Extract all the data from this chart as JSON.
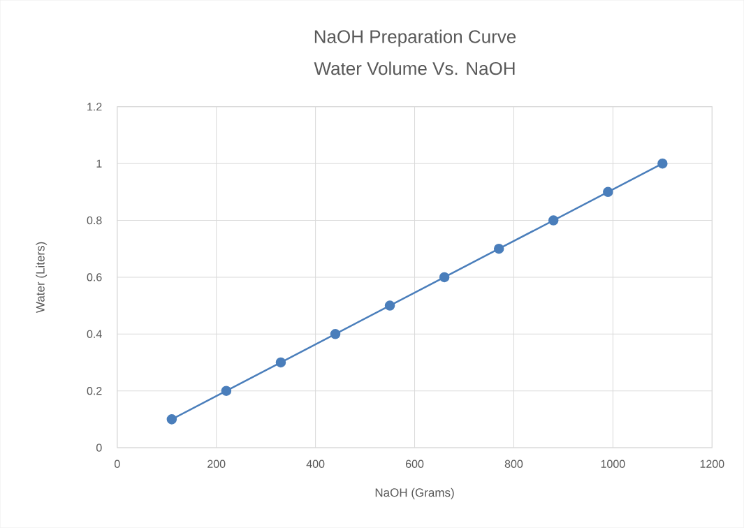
{
  "chart_data": {
    "type": "line",
    "title": "NaOH Preparation Curve",
    "subtitle": "Water Volume Vs. NaOH",
    "xlabel": "NaOH (Grams)",
    "ylabel": "Water (Liters)",
    "series": [
      {
        "color": "#4a7ebb",
        "x": [
          110,
          220,
          330,
          440,
          550,
          660,
          770,
          880,
          990,
          1100
        ],
        "values": [
          0.1,
          0.2,
          0.3,
          0.4,
          0.5,
          0.6,
          0.7,
          0.8,
          0.9,
          1.0
        ]
      }
    ],
    "xlim": [
      0,
      1200
    ],
    "xticks": [
      0,
      200,
      400,
      600,
      800,
      1000,
      1200
    ],
    "ylim": [
      0,
      1.2
    ],
    "yticks": [
      0,
      0.2,
      0.4,
      0.6,
      0.8,
      1,
      1.2
    ],
    "grid": true,
    "marker": "circle",
    "line_style": "solid"
  }
}
